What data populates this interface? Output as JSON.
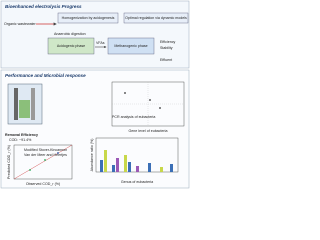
{
  "process": {
    "title": "Bioenhanced electrolysis Progress",
    "input": "Organic wastewater",
    "step_homogenization": "Homogenization by acidogenesis",
    "step_regulation": "Optimal regulation via dynamic models",
    "digestion": "Anaerobic digestion",
    "acidogenic": "Acidogenic phase",
    "vfas": "VFAs",
    "methanogenic": "Methanogenic phase",
    "efficiency": "Efficiency",
    "stability": "Stability",
    "effluent": "Effluent"
  },
  "performance": {
    "title": "Performance and Microbial response",
    "pca_title": "PCR analysis of eubacteria",
    "pca_axis": "Gene level of eubacteria",
    "removal_label": "Removal Efficiency",
    "removal_value": "COD: ~91.4%",
    "model_1": "Modified Stover-Kincannon",
    "model_2": "Van der Meer and Heertjes",
    "fit_x": "Observed COD_r (%)",
    "fit_y": "Predicted COD_r (%)",
    "bar_x": "Genus of eubacteria",
    "bar_y": "Abundance ratio (%)"
  }
}
